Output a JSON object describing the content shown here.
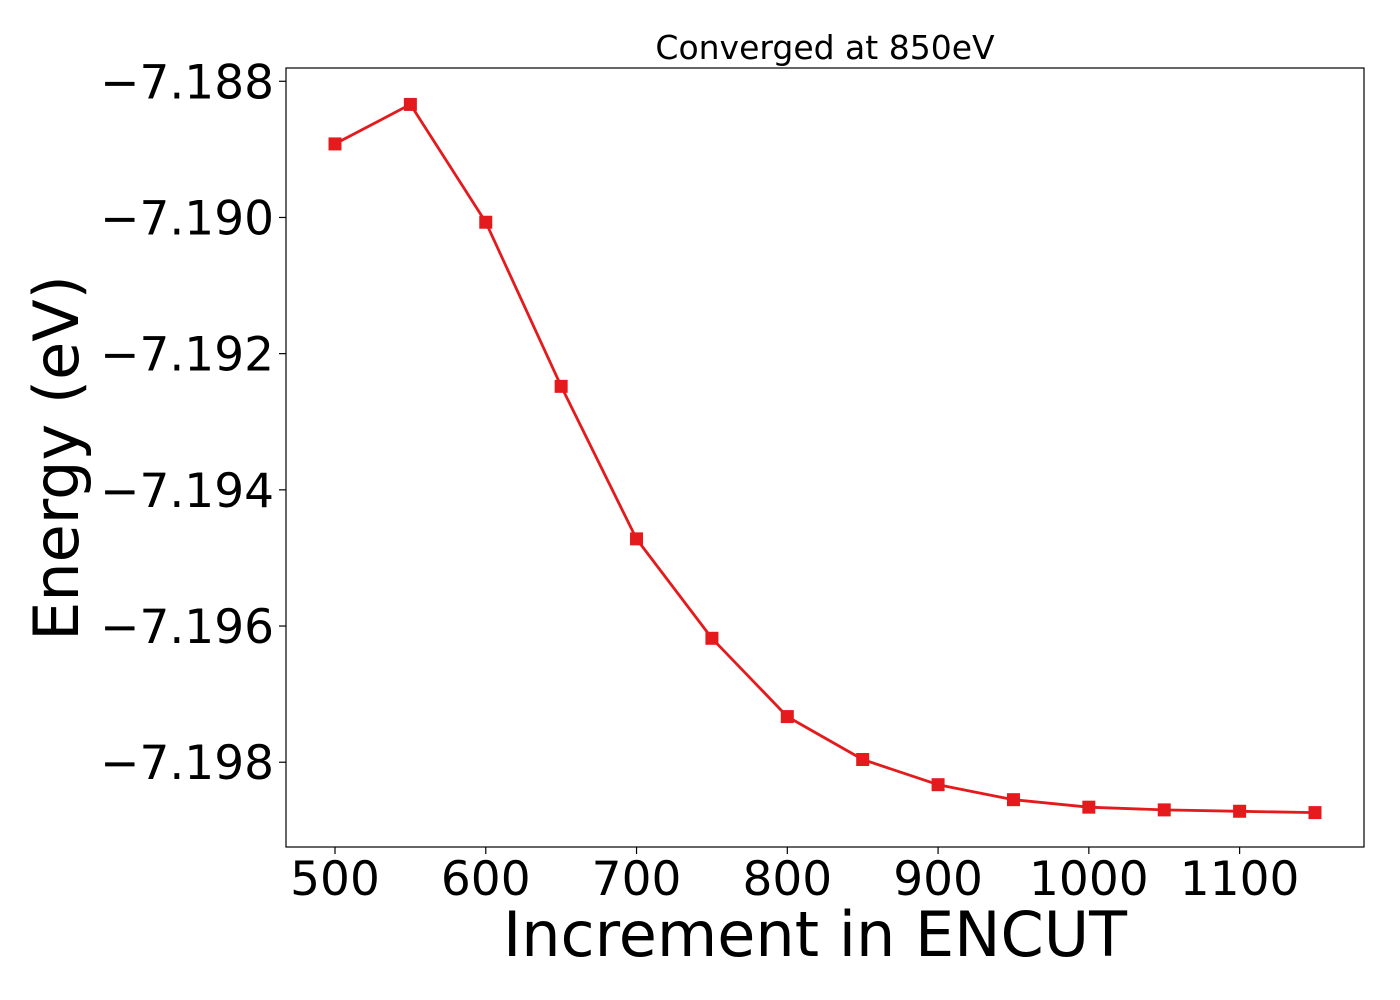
{
  "chart_data": {
    "type": "line",
    "title": "Converged at 850eV",
    "xlabel": "Increment in ENCUT",
    "ylabel": "Energy (eV)",
    "x": [
      500,
      550,
      600,
      650,
      700,
      750,
      800,
      850,
      900,
      950,
      1000,
      1050,
      1100,
      1150
    ],
    "series": [
      {
        "values": [
          -7.18892,
          -7.18834,
          -7.19007,
          -7.19248,
          -7.19472,
          -7.19618,
          -7.19733,
          -7.19796,
          -7.19833,
          -7.19855,
          -7.19866,
          -7.1987,
          -7.19872,
          -7.19874
        ],
        "color": "#e41a1c",
        "marker": "square"
      }
    ],
    "xlim": [
      467.5,
      1182.5
    ],
    "ylim": [
      -7.199245,
      -7.187805
    ],
    "xticks": [
      500,
      600,
      700,
      800,
      900,
      1000,
      1100
    ],
    "xtick_labels": [
      "500",
      "600",
      "700",
      "800",
      "900",
      "1000",
      "1100"
    ],
    "yticks": [
      -7.188,
      -7.19,
      -7.192,
      -7.194,
      -7.196,
      -7.198
    ],
    "ytick_labels": [
      "−7.188",
      "−7.190",
      "−7.192",
      "−7.194",
      "−7.196",
      "−7.198"
    ],
    "grid": false,
    "legend": false
  }
}
